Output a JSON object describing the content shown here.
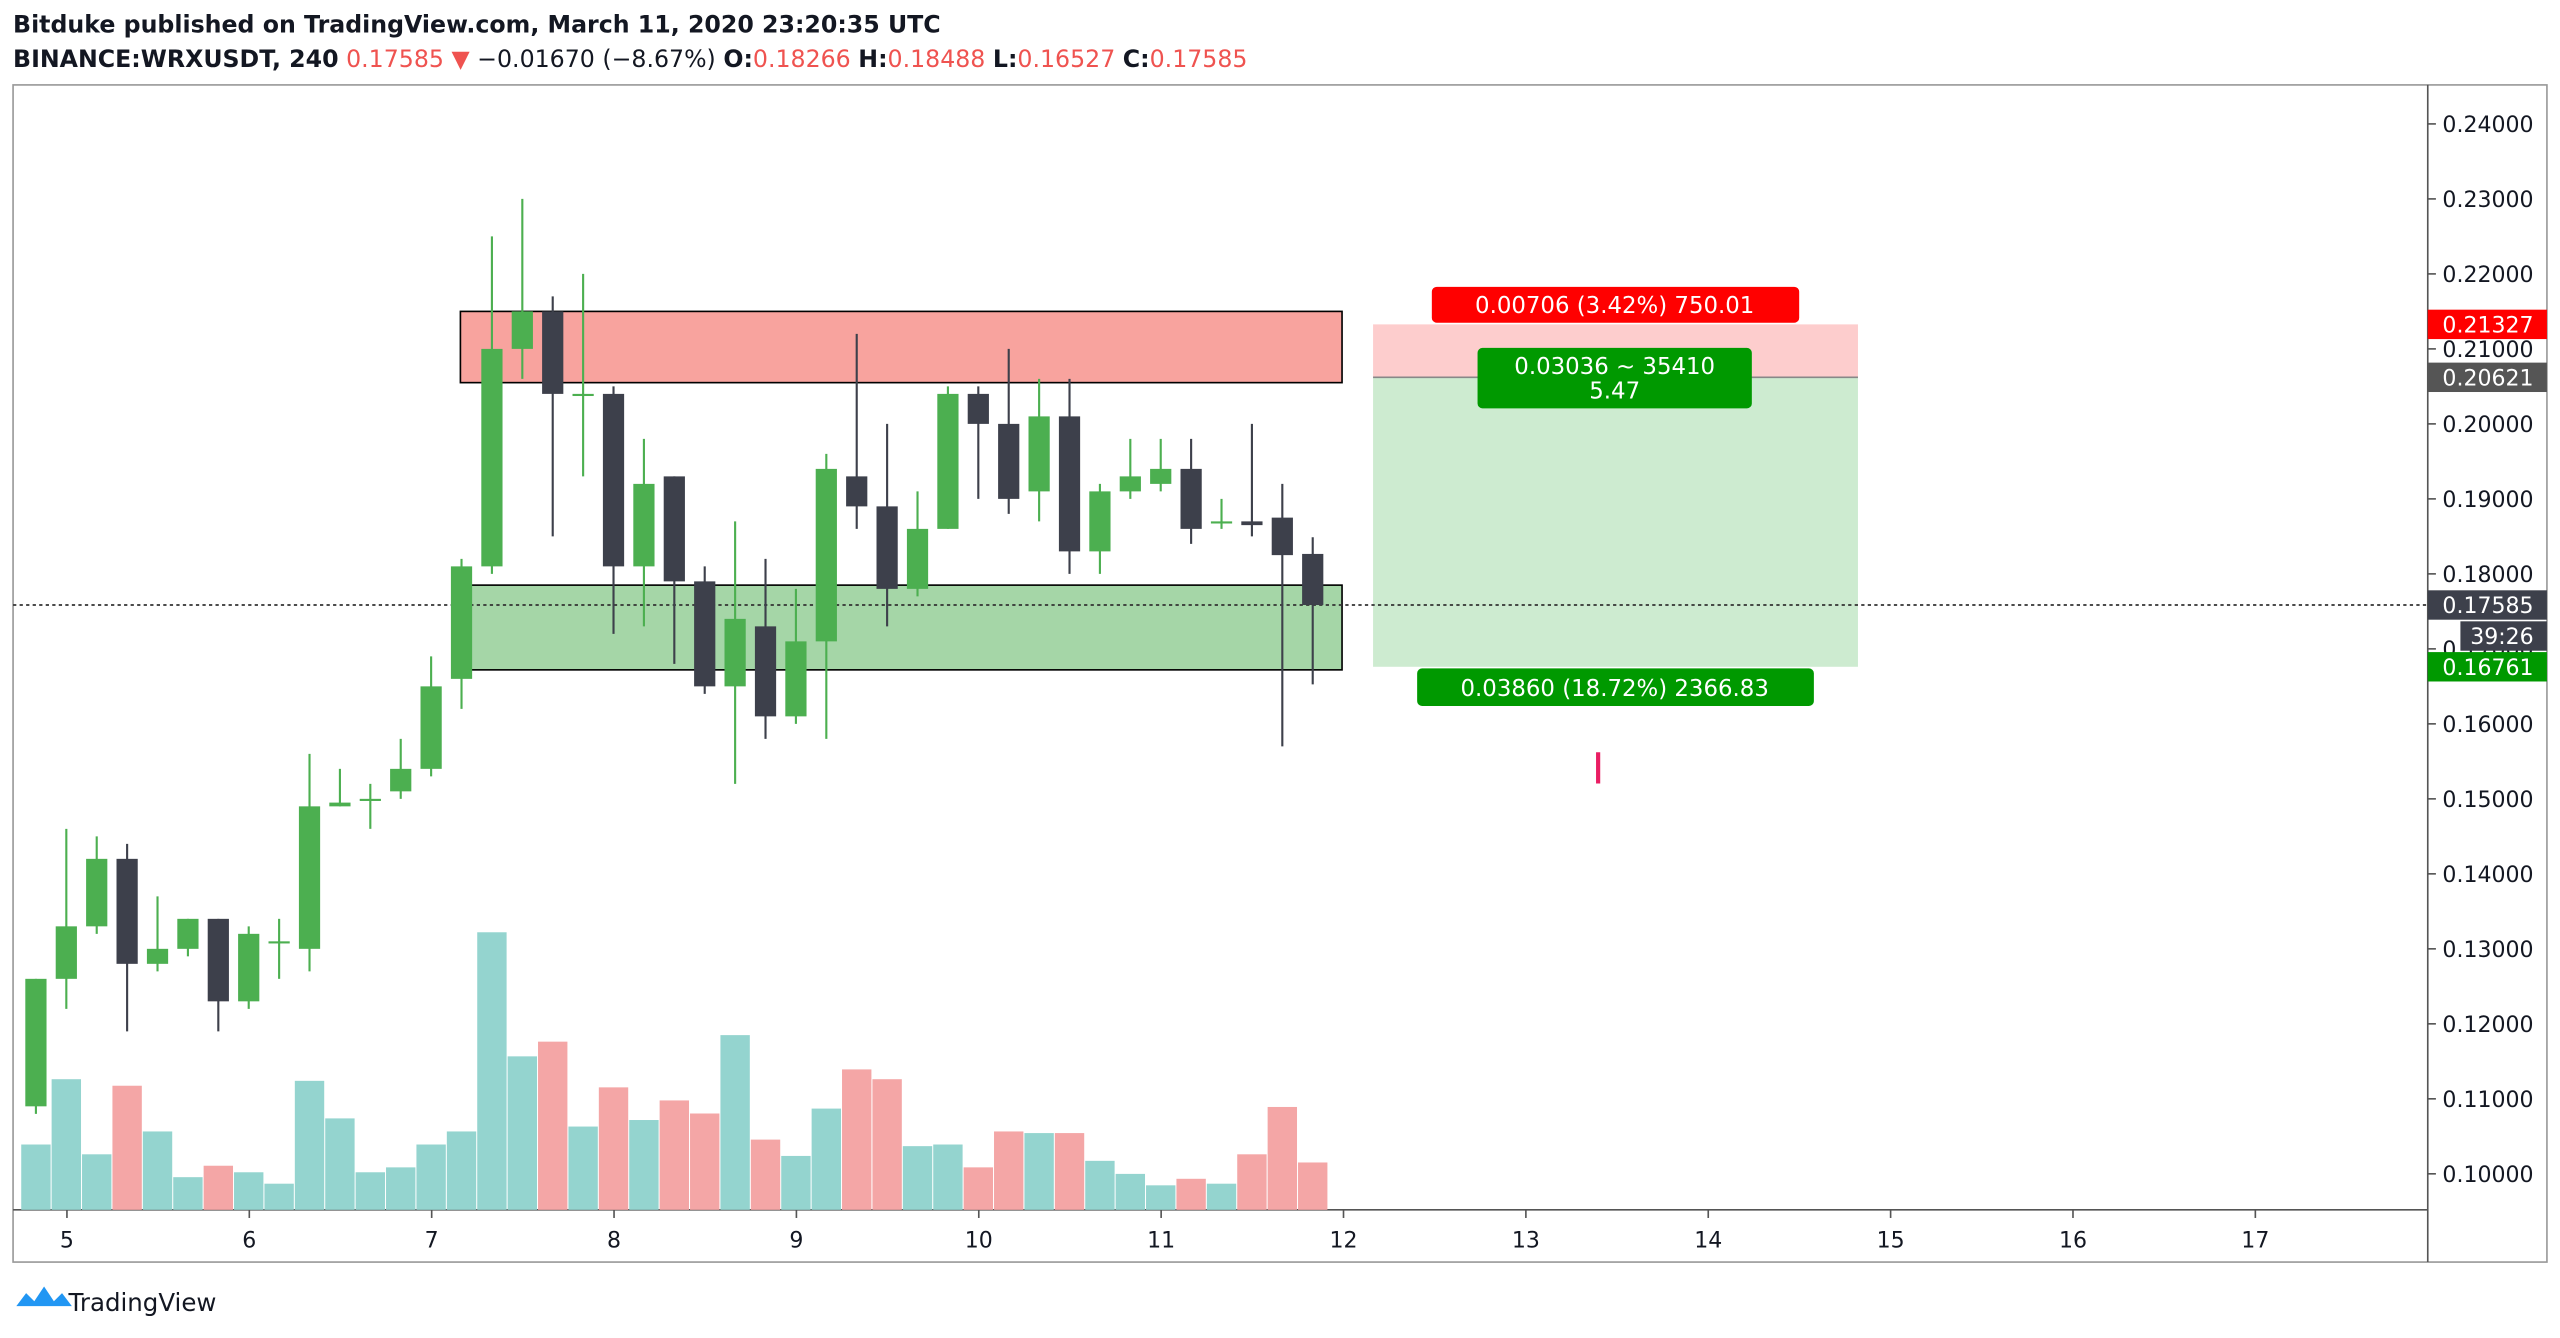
{
  "header": {
    "publisher": "Bitduke published on TradingView.com, March 11, 2020 23:20:35 UTC",
    "symbol": "BINANCE:WRXUSDT, 240",
    "last": "0.17585",
    "arrow": "▼",
    "change": "−0.01670 (−8.67%)",
    "o_label": "O:",
    "o": "0.18266",
    "h_label": "H:",
    "h": "0.18488",
    "l_label": "L:",
    "l": "0.16527",
    "c_label": "C:",
    "c": "0.17585"
  },
  "footer": {
    "brand": "TradingView"
  },
  "chart_data": {
    "type": "candlestick",
    "open": [
      0.109,
      0.126,
      0.133,
      0.142,
      0.128,
      0.13,
      0.134,
      0.123,
      0.131,
      0.13,
      0.149,
      0.15,
      0.151,
      0.154,
      0.166,
      0.181,
      0.21,
      0.215,
      0.204,
      0.204,
      0.181,
      0.193,
      0.179,
      0.165,
      0.173,
      0.161,
      0.171,
      0.193,
      0.189,
      0.178,
      0.186,
      0.204,
      0.2,
      0.191,
      0.201,
      0.183,
      0.191,
      0.192,
      0.194,
      0.187,
      0.187,
      0.1875,
      0.18266
    ],
    "high": [
      0.126,
      0.146,
      0.145,
      0.144,
      0.137,
      0.134,
      0.134,
      0.133,
      0.134,
      0.156,
      0.154,
      0.152,
      0.158,
      0.169,
      0.182,
      0.225,
      0.23,
      0.217,
      0.22,
      0.205,
      0.198,
      0.193,
      0.181,
      0.187,
      0.182,
      0.178,
      0.196,
      0.212,
      0.2,
      0.191,
      0.205,
      0.205,
      0.21,
      0.206,
      0.206,
      0.192,
      0.198,
      0.198,
      0.198,
      0.19,
      0.2,
      0.192,
      0.18488
    ],
    "low": [
      0.108,
      0.122,
      0.132,
      0.119,
      0.127,
      0.129,
      0.119,
      0.122,
      0.126,
      0.127,
      0.149,
      0.146,
      0.15,
      0.153,
      0.162,
      0.18,
      0.206,
      0.185,
      0.193,
      0.172,
      0.173,
      0.168,
      0.164,
      0.152,
      0.158,
      0.16,
      0.158,
      0.186,
      0.173,
      0.177,
      0.186,
      0.19,
      0.188,
      0.187,
      0.18,
      0.18,
      0.19,
      0.191,
      0.184,
      0.186,
      0.185,
      0.157,
      0.16527
    ],
    "close": [
      0.126,
      0.133,
      0.142,
      0.128,
      0.13,
      0.134,
      0.123,
      0.132,
      0.131,
      0.149,
      0.1495,
      0.15,
      0.154,
      0.165,
      0.181,
      0.21,
      0.215,
      0.204,
      0.204,
      0.181,
      0.192,
      0.179,
      0.165,
      0.174,
      0.161,
      0.171,
      0.194,
      0.189,
      0.178,
      0.186,
      0.204,
      0.2,
      0.19,
      0.201,
      0.183,
      0.191,
      0.193,
      0.194,
      0.186,
      0.187,
      0.1865,
      0.1825,
      0.17585
    ],
    "volume": [
      40,
      80,
      34,
      76,
      48,
      20,
      27,
      23,
      16,
      79,
      56,
      23,
      26,
      40,
      48,
      170,
      94,
      103,
      51,
      75,
      55,
      67,
      59,
      107,
      43,
      33,
      62,
      86,
      80,
      39,
      40,
      26,
      48,
      47,
      47,
      30,
      22,
      15,
      19,
      16,
      34,
      63,
      29
    ],
    "volume_lim": [
      0,
      689
    ],
    "up_color": "#4caf50",
    "down_color": "#3d404b",
    "volume_up_color": "#94d4cf",
    "volume_down_color": "#f4a6a6",
    "ylim": [
      0.0952,
      0.2452
    ],
    "yticks": [
      {
        "value": 0.1,
        "label": "0.10000"
      },
      {
        "value": 0.11,
        "label": "0.11000"
      },
      {
        "value": 0.12,
        "label": "0.12000"
      },
      {
        "value": 0.13,
        "label": "0.13000"
      },
      {
        "value": 0.14,
        "label": "0.14000"
      },
      {
        "value": 0.15,
        "label": "0.15000"
      },
      {
        "value": 0.16,
        "label": "0.16000"
      },
      {
        "value": 0.17,
        "label": "0.17000"
      },
      {
        "value": 0.18,
        "label": "0.18000"
      },
      {
        "value": 0.19,
        "label": "0.19000"
      },
      {
        "value": 0.2,
        "label": "0.20000"
      },
      {
        "value": 0.21,
        "label": "0.21000"
      },
      {
        "value": 0.22,
        "label": "0.22000"
      },
      {
        "value": 0.23,
        "label": "0.23000"
      },
      {
        "value": 0.24,
        "label": "0.24000"
      }
    ],
    "xticks": [
      5,
      6,
      7,
      8,
      9,
      10,
      11,
      12,
      13,
      14,
      15,
      16,
      17
    ],
    "zones": [
      {
        "low": 0.2055,
        "high": 0.215,
        "color": "#f8a39e"
      },
      {
        "low": 0.1672,
        "high": 0.1785,
        "color": "#a5d6a7"
      }
    ],
    "position": {
      "stop": 0.21327,
      "entry": 0.20621,
      "target": 0.16761,
      "stop_label": "0.00706 (3.42%) 750.01",
      "ratio_label": "0.03036 ~ 35410",
      "ratio_value": "5.47",
      "target_label": "0.03860 (18.72%) 2366.83"
    },
    "last_price": 0.17585,
    "countdown": "39:26",
    "price_tags": [
      {
        "value": 0.21327,
        "label": "0.21327",
        "color": "#f00"
      },
      {
        "value": 0.20621,
        "label": "0.20621",
        "color": "#555"
      },
      {
        "value": 0.17585,
        "label": "0.17585",
        "color": "#3d404b"
      },
      {
        "value": 0.16761,
        "label": "0.16761",
        "color": "#090"
      }
    ]
  }
}
